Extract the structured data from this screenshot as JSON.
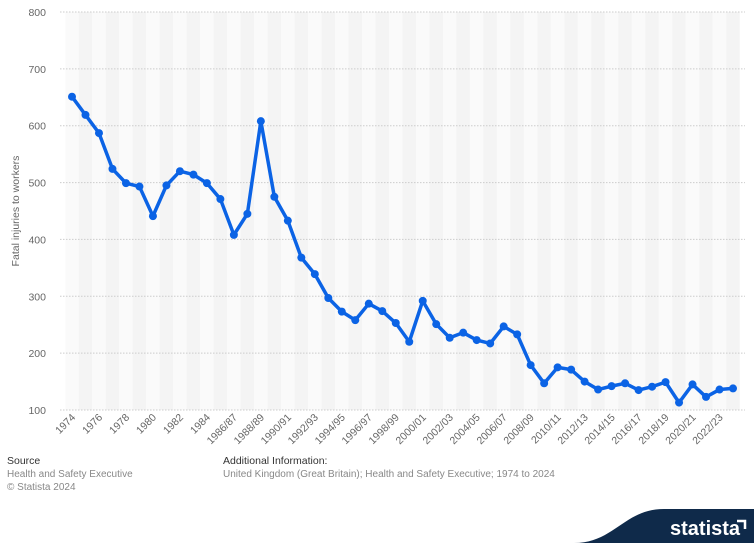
{
  "chart_data": {
    "type": "line",
    "ylabel": "Fatal injuries to workers",
    "ylim": [
      100,
      800
    ],
    "yticks": [
      100,
      200,
      300,
      400,
      500,
      600,
      700,
      800
    ],
    "grid": true,
    "color": "#0b63e5",
    "categories": [
      "1974",
      "1975",
      "1976",
      "1977",
      "1978",
      "1979",
      "1980",
      "1981",
      "1982",
      "1983",
      "1984",
      "1985",
      "1986/87",
      "1987/88",
      "1988/89",
      "1989/90",
      "1990/91",
      "1991/92",
      "1992/93",
      "1993/94",
      "1994/95",
      "1995/96",
      "1996/97",
      "1997/98",
      "1998/99",
      "1999/00",
      "2000/01",
      "2001/02",
      "2002/03",
      "2003/04",
      "2004/05",
      "2005/06",
      "2006/07",
      "2007/08",
      "2008/09",
      "2009/10",
      "2010/11",
      "2011/12",
      "2012/13",
      "2013/14",
      "2014/15",
      "2015/16",
      "2016/17",
      "2017/18",
      "2018/19",
      "2019/20",
      "2020/21",
      "2021/22",
      "2022/23",
      "2023/24"
    ],
    "values": [
      651,
      619,
      587,
      524,
      499,
      493,
      441,
      495,
      520,
      514,
      499,
      471,
      408,
      445,
      608,
      475,
      433,
      368,
      339,
      297,
      273,
      258,
      287,
      274,
      253,
      220,
      292,
      251,
      227,
      236,
      223,
      217,
      247,
      233,
      179,
      147,
      175,
      171,
      150,
      136,
      142,
      147,
      135,
      141,
      149,
      113,
      145,
      123,
      136,
      138
    ]
  },
  "footer": {
    "source_title": "Source",
    "source": "Health and Safety Executive",
    "copyright": "© Statista 2024",
    "info_title": "Additional Information:",
    "info": "United Kingdom (Great Britain); Health and Safety Executive; 1974 to 2024"
  },
  "logo": "statista"
}
